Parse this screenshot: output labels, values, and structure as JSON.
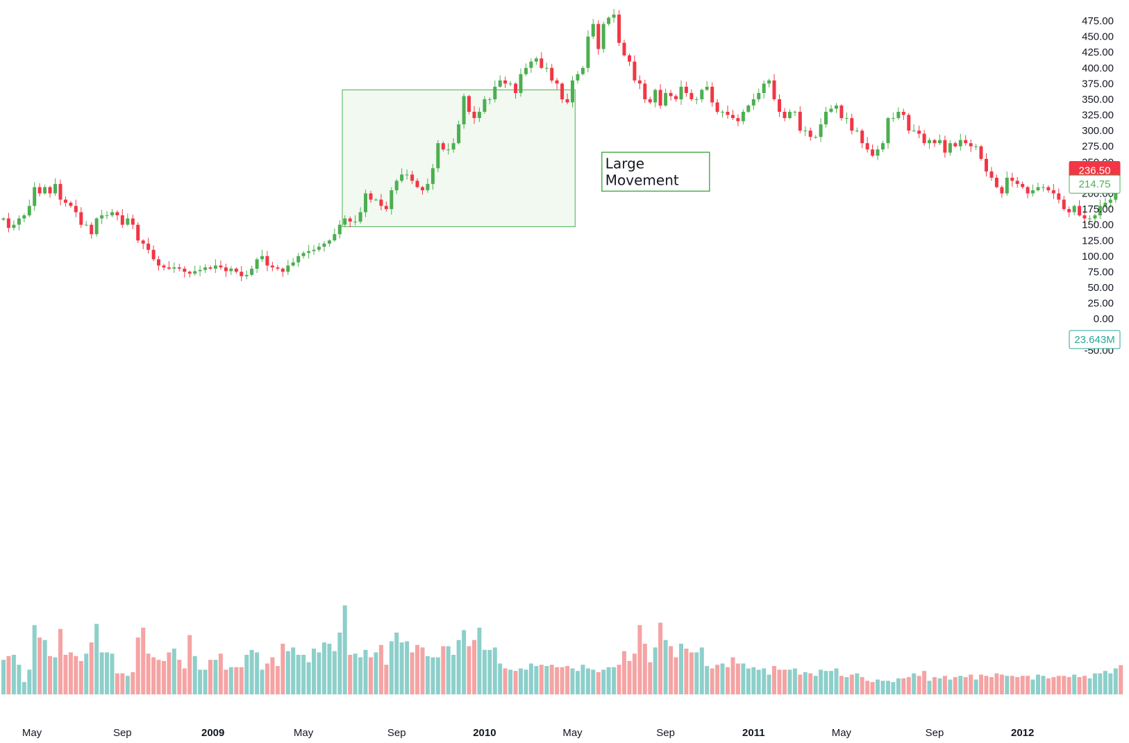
{
  "chart_data": {
    "type": "candlestick",
    "y_range": [
      -62,
      490
    ],
    "y_ticks": [
      475,
      450,
      425,
      400,
      375,
      350,
      325,
      300,
      275,
      250,
      225,
      200,
      175,
      150,
      125,
      100,
      75,
      50,
      25,
      0,
      -25,
      -50
    ],
    "y_tick_labels": [
      "475.00",
      "450.00",
      "425.00",
      "400.00",
      "375.00",
      "350.00",
      "325.00",
      "300.00",
      "275.00",
      "250.00",
      "225.00",
      "200.00",
      "175.00",
      "150.00",
      "125.00",
      "100.00",
      "75.00",
      "50.00",
      "25.00",
      "0.00",
      "-25.00",
      "-50.00"
    ],
    "x_ticks": [
      {
        "label": "May",
        "week": 5.5,
        "bold": false
      },
      {
        "label": "Sep",
        "week": 23,
        "bold": false
      },
      {
        "label": "2009",
        "week": 40.5,
        "bold": true
      },
      {
        "label": "May",
        "week": 58,
        "bold": false
      },
      {
        "label": "Sep",
        "week": 76,
        "bold": false
      },
      {
        "label": "2010",
        "week": 93,
        "bold": true
      },
      {
        "label": "May",
        "week": 110,
        "bold": false
      },
      {
        "label": "Sep",
        "week": 128,
        "bold": false
      },
      {
        "label": "2011",
        "week": 145,
        "bold": true
      },
      {
        "label": "May",
        "week": 162,
        "bold": false
      },
      {
        "label": "Sep",
        "week": 180,
        "bold": false
      },
      {
        "label": "2012",
        "week": 197,
        "bold": true
      }
    ],
    "close": [
      160,
      145,
      150,
      160,
      165,
      180,
      210,
      200,
      210,
      200,
      215,
      190,
      185,
      180,
      170,
      150,
      150,
      135,
      160,
      165,
      165,
      170,
      165,
      150,
      160,
      150,
      125,
      120,
      110,
      95,
      85,
      82,
      80,
      82,
      80,
      75,
      72,
      76,
      78,
      82,
      80,
      85,
      82,
      76,
      80,
      75,
      68,
      70,
      80,
      95,
      100,
      85,
      82,
      80,
      75,
      85,
      90,
      100,
      105,
      108,
      110,
      115,
      120,
      125,
      135,
      150,
      160,
      155,
      155,
      170,
      200,
      190,
      190,
      180,
      175,
      205,
      220,
      230,
      230,
      220,
      210,
      205,
      215,
      240,
      280,
      270,
      270,
      280,
      310,
      355,
      330,
      320,
      330,
      350,
      350,
      370,
      380,
      375,
      375,
      360,
      390,
      400,
      410,
      415,
      400,
      400,
      380,
      375,
      350,
      345,
      380,
      390,
      400,
      450,
      470,
      430,
      470,
      480,
      485,
      440,
      420,
      410,
      380,
      375,
      350,
      345,
      365,
      340,
      360,
      355,
      350,
      370,
      360,
      350,
      350,
      365,
      370,
      345,
      330,
      330,
      325,
      320,
      315,
      330,
      340,
      350,
      360,
      375,
      380,
      350,
      330,
      320,
      330,
      330,
      300,
      300,
      290,
      290,
      310,
      330,
      335,
      340,
      320,
      320,
      300,
      300,
      280,
      270,
      260,
      270,
      280,
      320,
      320,
      330,
      325,
      300,
      300,
      295,
      280,
      285,
      280,
      285,
      265,
      280,
      275,
      285,
      280,
      275,
      275,
      255,
      235,
      225,
      210,
      200,
      225,
      220,
      215,
      210,
      200,
      205,
      210,
      210,
      205,
      200,
      190,
      175,
      170,
      180,
      165,
      160,
      160,
      165,
      180,
      185,
      190,
      214.75
    ],
    "volume_m": [
      28,
      31,
      32,
      24,
      10,
      20,
      56,
      46,
      44,
      31,
      30,
      53,
      32,
      34,
      31,
      27,
      33,
      42,
      57,
      34,
      34,
      33,
      17,
      17,
      15,
      18,
      46,
      54,
      33,
      30,
      28,
      27,
      34,
      37,
      28,
      21,
      48,
      31,
      20,
      20,
      28,
      28,
      33,
      20,
      22,
      22,
      22,
      32,
      36,
      34,
      20,
      25,
      30,
      23,
      41,
      35,
      38,
      32,
      32,
      26,
      37,
      34,
      42,
      41,
      35,
      50,
      72,
      32,
      33,
      30,
      36,
      30,
      34,
      40,
      24,
      43,
      50,
      42,
      43,
      34,
      40,
      38,
      31,
      30,
      30,
      39,
      39,
      32,
      44,
      52,
      39,
      44,
      54,
      36,
      36,
      38,
      25,
      21,
      20,
      19,
      21,
      20,
      25,
      23,
      24,
      23,
      24,
      22,
      22,
      23,
      21,
      19,
      24,
      21,
      20,
      18,
      20,
      22,
      22,
      24,
      35,
      27,
      33,
      56,
      41,
      26,
      38,
      58,
      44,
      39,
      30,
      41,
      37,
      34,
      34,
      38,
      23,
      21,
      24,
      25,
      22,
      30,
      25,
      25,
      21,
      22,
      20,
      21,
      16,
      23,
      20,
      20,
      20,
      21,
      16,
      18,
      17,
      15,
      20,
      19,
      19,
      21,
      15,
      14,
      16,
      17,
      14,
      11,
      10,
      12,
      11,
      11,
      10,
      13,
      13,
      14,
      17,
      15,
      19,
      11,
      14,
      13,
      15,
      12,
      14,
      15,
      14,
      16,
      12,
      16,
      15,
      14,
      17,
      16,
      15,
      15,
      14,
      15,
      15,
      12,
      16,
      15,
      13,
      14,
      15,
      15,
      14,
      16,
      14,
      15,
      13,
      17,
      17,
      19,
      17,
      21,
      23.643
    ],
    "last_price": "236.50",
    "current_price": "214.75",
    "current_volume": "23.643M",
    "colors": {
      "up": "#26a69a",
      "up_candle": "#4caf50",
      "down": "#ef5350",
      "down_candle": "#f23645",
      "vol_up": "#8dcfca",
      "vol_down": "#f5a3a3",
      "box_border": "#4caf50",
      "box_fill": "#f1f9f1",
      "text": "#131722"
    },
    "annotation": {
      "text_lines": [
        "Large",
        "Movement"
      ],
      "box_weeks": [
        65.5,
        110.5
      ],
      "box_prices": [
        365,
        147
      ],
      "label_anchor_week": 115,
      "label_anchor_price": 250
    }
  }
}
